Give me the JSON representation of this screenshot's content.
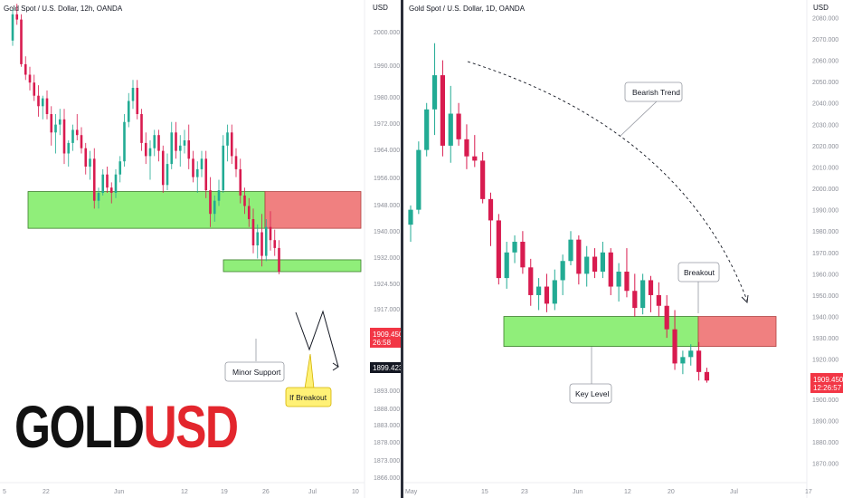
{
  "chart_data": [
    {
      "type": "candlestick",
      "title": "Gold Spot / U.S. Dollar, 12h, OANDA",
      "currency": "USD",
      "y_ticks": [
        2000.0,
        1990.0,
        1980.0,
        1972.0,
        1964.0,
        1956.0,
        1948.0,
        1940.0,
        1932.0,
        1924.5,
        1917.0,
        1893.0,
        1888.0,
        1883.0,
        1878.0,
        1873.0,
        1866.0
      ],
      "x_ticks": [
        "5",
        "22",
        "Jun",
        "12",
        "19",
        "26",
        "Jul",
        "10"
      ],
      "last_price": {
        "label": "1909.450",
        "countdown": "26:58",
        "color": "#f23645"
      },
      "target_price": {
        "label": "1899.423"
      },
      "callouts": [
        {
          "text": "Minor Support"
        },
        {
          "text": "If Breakout"
        }
      ],
      "zones": [
        {
          "name": "demand zone",
          "color": "#90ee7a",
          "top": 1940.5,
          "bottom": 1926.5
        },
        {
          "name": "projected zone",
          "color": "#f08080",
          "top": 1940.5,
          "bottom": 1926.5
        },
        {
          "name": "minor support",
          "color": "#90ee7a",
          "top": 1914.5,
          "bottom": 1910.0
        }
      ],
      "candles": [
        [
          1998,
          2010,
          1996,
          2008
        ],
        [
          2008,
          2012,
          2004,
          2006
        ],
        [
          2006,
          2008,
          1988,
          1989
        ],
        [
          1989,
          1992,
          1983,
          1985
        ],
        [
          1985,
          1988,
          1979,
          1982
        ],
        [
          1982,
          1985,
          1975,
          1977
        ],
        [
          1977,
          1981,
          1969,
          1973
        ],
        [
          1973,
          1977,
          1968,
          1976
        ],
        [
          1976,
          1979,
          1968,
          1970
        ],
        [
          1970,
          1973,
          1958,
          1963
        ],
        [
          1963,
          1970,
          1955,
          1966
        ],
        [
          1966,
          1972,
          1962,
          1968
        ],
        [
          1968,
          1972,
          1951,
          1955
        ],
        [
          1955,
          1960,
          1950,
          1959
        ],
        [
          1959,
          1966,
          1956,
          1964
        ],
        [
          1964,
          1970,
          1960,
          1962
        ],
        [
          1962,
          1965,
          1955,
          1957
        ],
        [
          1957,
          1959,
          1947,
          1950
        ],
        [
          1950,
          1956,
          1945,
          1953
        ],
        [
          1953,
          1957,
          1934,
          1937
        ],
        [
          1937,
          1942,
          1934,
          1940
        ],
        [
          1940,
          1949,
          1939,
          1947
        ],
        [
          1947,
          1950,
          1940,
          1942
        ],
        [
          1942,
          1944,
          1936,
          1940
        ],
        [
          1940,
          1949,
          1938,
          1947
        ],
        [
          1947,
          1954,
          1944,
          1952
        ],
        [
          1952,
          1970,
          1950,
          1967
        ],
        [
          1967,
          1978,
          1965,
          1975
        ],
        [
          1975,
          1983,
          1972,
          1980
        ],
        [
          1980,
          1983,
          1968,
          1970
        ],
        [
          1970,
          1972,
          1956,
          1959
        ],
        [
          1959,
          1963,
          1951,
          1954
        ],
        [
          1954,
          1960,
          1945,
          1957
        ],
        [
          1957,
          1964,
          1954,
          1962
        ],
        [
          1962,
          1964,
          1952,
          1956
        ],
        [
          1956,
          1958,
          1940,
          1943
        ],
        [
          1943,
          1955,
          1941,
          1951
        ],
        [
          1951,
          1967,
          1949,
          1963
        ],
        [
          1963,
          1967,
          1953,
          1956
        ],
        [
          1956,
          1962,
          1950,
          1958
        ],
        [
          1958,
          1964,
          1955,
          1960
        ],
        [
          1960,
          1966,
          1949,
          1953
        ],
        [
          1953,
          1956,
          1944,
          1946
        ],
        [
          1946,
          1952,
          1940,
          1949
        ],
        [
          1949,
          1956,
          1946,
          1953
        ],
        [
          1953,
          1956,
          1938,
          1941
        ],
        [
          1941,
          1946,
          1927,
          1932
        ],
        [
          1932,
          1939,
          1929,
          1937
        ],
        [
          1937,
          1945,
          1935,
          1941
        ],
        [
          1941,
          1962,
          1940,
          1958
        ],
        [
          1958,
          1966,
          1952,
          1963
        ],
        [
          1963,
          1966,
          1951,
          1954
        ],
        [
          1954,
          1957,
          1946,
          1949
        ],
        [
          1949,
          1953,
          1936,
          1939
        ],
        [
          1939,
          1942,
          1932,
          1935
        ],
        [
          1935,
          1938,
          1927,
          1930
        ],
        [
          1930,
          1934,
          1917,
          1920
        ],
        [
          1920,
          1928,
          1915,
          1925
        ],
        [
          1925,
          1932,
          1912,
          1916
        ],
        [
          1916,
          1930,
          1914,
          1927
        ],
        [
          1927,
          1933,
          1918,
          1922
        ],
        [
          1922,
          1926,
          1916,
          1919
        ],
        [
          1919,
          1922,
          1909,
          1910
        ]
      ]
    },
    {
      "type": "candlestick",
      "title": "Gold Spot / U.S. Dollar, 1D, OANDA",
      "currency": "USD",
      "y_ticks": [
        2080.0,
        2070.0,
        2060.0,
        2050.0,
        2040.0,
        2030.0,
        2020.0,
        2010.0,
        2000.0,
        1990.0,
        1980.0,
        1970.0,
        1960.0,
        1950.0,
        1940.0,
        1930.0,
        1920.0,
        1900.0,
        1890.0,
        1880.0,
        1870.0
      ],
      "x_ticks": [
        "May",
        "15",
        "23",
        "Jun",
        "12",
        "20",
        "Jul",
        "17"
      ],
      "last_price": {
        "label": "1909.450",
        "countdown": "12:26:57",
        "color": "#f23645"
      },
      "callouts": [
        {
          "text": "Bearish Trend"
        },
        {
          "text": "Breakout"
        },
        {
          "text": "Key Level"
        }
      ],
      "zones": [
        {
          "name": "key level zone",
          "color": "#90ee7a",
          "top": 1940,
          "bottom": 1926
        },
        {
          "name": "breakout zone",
          "color": "#f08080",
          "top": 1940,
          "bottom": 1926
        }
      ],
      "candles": [
        [
          1983,
          1992,
          1975,
          1990
        ],
        [
          1990,
          2022,
          1988,
          2018
        ],
        [
          2018,
          2040,
          2015,
          2037
        ],
        [
          2037,
          2068,
          2025,
          2053
        ],
        [
          2053,
          2060,
          2015,
          2020
        ],
        [
          2020,
          2048,
          2012,
          2035
        ],
        [
          2035,
          2040,
          2020,
          2023
        ],
        [
          2023,
          2030,
          2009,
          2015
        ],
        [
          2015,
          2025,
          2010,
          2013
        ],
        [
          2013,
          2017,
          1993,
          1995
        ],
        [
          1995,
          1998,
          1973,
          1985
        ],
        [
          1985,
          1988,
          1955,
          1958
        ],
        [
          1958,
          1975,
          1953,
          1970
        ],
        [
          1970,
          1978,
          1965,
          1975
        ],
        [
          1975,
          1980,
          1960,
          1963
        ],
        [
          1963,
          1967,
          1945,
          1950
        ],
        [
          1950,
          1958,
          1943,
          1954
        ],
        [
          1954,
          1960,
          1942,
          1946
        ],
        [
          1946,
          1962,
          1943,
          1957
        ],
        [
          1957,
          1969,
          1950,
          1966
        ],
        [
          1966,
          1980,
          1964,
          1976
        ],
        [
          1976,
          1978,
          1955,
          1960
        ],
        [
          1960,
          1973,
          1954,
          1968
        ],
        [
          1968,
          1972,
          1958,
          1961
        ],
        [
          1961,
          1975,
          1958,
          1970
        ],
        [
          1970,
          1972,
          1950,
          1954
        ],
        [
          1954,
          1965,
          1947,
          1961
        ],
        [
          1961,
          1972,
          1949,
          1952
        ],
        [
          1952,
          1960,
          1940,
          1944
        ],
        [
          1944,
          1960,
          1941,
          1957
        ],
        [
          1957,
          1959,
          1942,
          1950
        ],
        [
          1950,
          1956,
          1940,
          1945
        ],
        [
          1945,
          1950,
          1930,
          1934
        ],
        [
          1934,
          1943,
          1915,
          1918
        ],
        [
          1918,
          1924,
          1913,
          1921
        ],
        [
          1921,
          1927,
          1917,
          1924
        ],
        [
          1924,
          1928,
          1910,
          1914
        ],
        [
          1914,
          1916,
          1909,
          1910
        ]
      ]
    }
  ],
  "logo": {
    "part1": "GOLD",
    "part2": "USD"
  }
}
